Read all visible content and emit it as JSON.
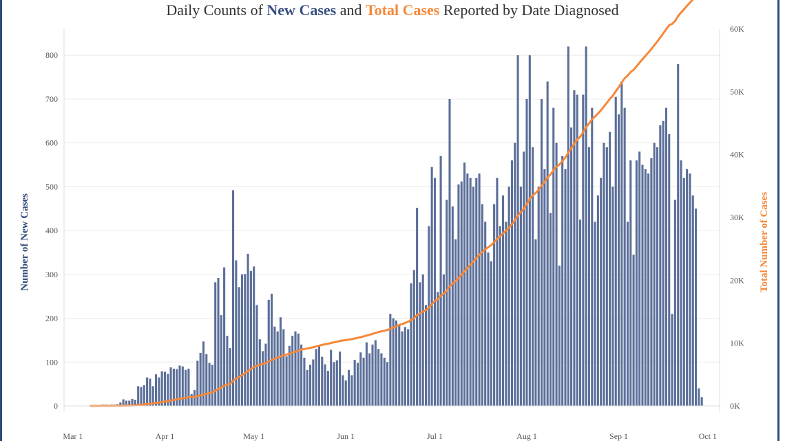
{
  "title": {
    "prefix": "Daily Counts of ",
    "new_cases": "New Cases",
    "middle": " and ",
    "total_cases": "Total Cases",
    "suffix": " Reported by Date Diagnosed"
  },
  "chart_data": {
    "type": "bar",
    "xlabel": "",
    "ylabel": "Number of New Cases",
    "y2label": "Total Number of Cases",
    "ylim": [
      0,
      860
    ],
    "y2lim": [
      0,
      60000
    ],
    "yticks": [
      0,
      100,
      200,
      300,
      400,
      500,
      600,
      700,
      800
    ],
    "y2ticks": [
      {
        "value": 0,
        "label": "0K"
      },
      {
        "value": 10000,
        "label": "10K"
      },
      {
        "value": 20000,
        "label": "20K"
      },
      {
        "value": 30000,
        "label": "30K"
      },
      {
        "value": 40000,
        "label": "40K"
      },
      {
        "value": 50000,
        "label": "50K"
      },
      {
        "value": 60000,
        "label": "60K"
      }
    ],
    "xticks": [
      {
        "date": "2020-03-01",
        "label": "Mar 1"
      },
      {
        "date": "2020-04-01",
        "label": "Apr 1"
      },
      {
        "date": "2020-05-01",
        "label": "May 1"
      },
      {
        "date": "2020-06-01",
        "label": "Jun 1"
      },
      {
        "date": "2020-07-01",
        "label": "Jul 1"
      },
      {
        "date": "2020-08-01",
        "label": "Aug 1"
      },
      {
        "date": "2020-09-01",
        "label": "Sep 1"
      },
      {
        "date": "2020-10-01",
        "label": "Oct 1"
      }
    ],
    "start_date": "2020-03-07",
    "grid": true,
    "series": [
      {
        "name": "New Cases",
        "type": "bar",
        "axis": "left",
        "color": "#5b6f99",
        "values": [
          1,
          1,
          1,
          2,
          3,
          3,
          2,
          3,
          3,
          4,
          8,
          15,
          12,
          12,
          16,
          14,
          45,
          43,
          47,
          65,
          62,
          45,
          72,
          65,
          79,
          78,
          73,
          88,
          85,
          84,
          92,
          90,
          82,
          85,
          27,
          36,
          103,
          121,
          147,
          118,
          98,
          94,
          282,
          292,
          207,
          316,
          160,
          132,
          492,
          332,
          271,
          300,
          301,
          347,
          308,
          318,
          230,
          152,
          125,
          142,
          242,
          256,
          181,
          170,
          202,
          175,
          113,
          137,
          160,
          170,
          165,
          140,
          110,
          82,
          94,
          106,
          130,
          138,
          112,
          95,
          80,
          128,
          100,
          104,
          124,
          70,
          58,
          82,
          70,
          105,
          98,
          122,
          110,
          145,
          120,
          140,
          150,
          130,
          120,
          110,
          100,
          210,
          200,
          195,
          185,
          170,
          180,
          175,
          280,
          310,
          452,
          282,
          300,
          230,
          410,
          545,
          520,
          260,
          570,
          300,
          470,
          700,
          455,
          380,
          505,
          512,
          555,
          530,
          520,
          500,
          520,
          530,
          460,
          420,
          350,
          330,
          460,
          520,
          410,
          480,
          420,
          500,
          560,
          600,
          800,
          500,
          580,
          700,
          800,
          590,
          380,
          500,
          700,
          540,
          740,
          440,
          680,
          600,
          320,
          570,
          540,
          820,
          635,
          720,
          710,
          425,
          710,
          820,
          590,
          680,
          420,
          480,
          520,
          600,
          590,
          625,
          500,
          705,
          665,
          740,
          680,
          420,
          560,
          345,
          560,
          580,
          550,
          540,
          530,
          565,
          600,
          590,
          640,
          650,
          680,
          620,
          210,
          470,
          780,
          560,
          520,
          540,
          530,
          480,
          450,
          40,
          20
        ]
      },
      {
        "name": "Total Cases",
        "type": "line",
        "axis": "right",
        "color": "#f5883a"
      }
    ]
  }
}
